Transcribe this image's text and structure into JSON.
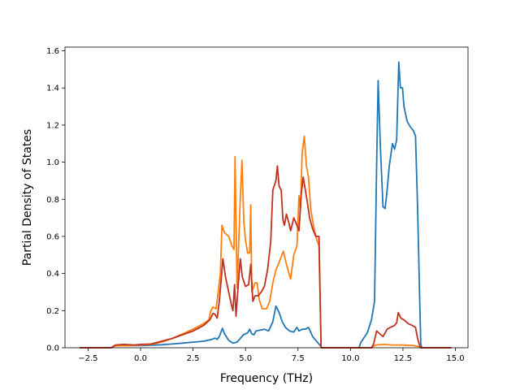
{
  "chart_data": {
    "type": "line",
    "title": "",
    "xlabel": "Frequency (THz)",
    "ylabel": "Partial Density of States",
    "xlim": [
      -3.6,
      15.6
    ],
    "ylim": [
      0,
      1.62
    ],
    "xticks": [
      -2.5,
      0.0,
      2.5,
      5.0,
      7.5,
      10.0,
      12.5,
      15.0
    ],
    "xtick_labels": [
      "−2.5",
      "0.0",
      "2.5",
      "5.0",
      "7.5",
      "10.0",
      "12.5",
      "15.0"
    ],
    "yticks": [
      0.0,
      0.2,
      0.4,
      0.6,
      0.8,
      1.0,
      1.2,
      1.4,
      1.6
    ],
    "ytick_labels": [
      "0.0",
      "0.2",
      "0.4",
      "0.6",
      "0.8",
      "1.0",
      "1.2",
      "1.4",
      "1.6"
    ],
    "grid": false,
    "legend": "none",
    "series": [
      {
        "color": "#1f77b4",
        "points": [
          [
            -2.9,
            0
          ],
          [
            -1.4,
            0
          ],
          [
            -1.2,
            0.012
          ],
          [
            -0.5,
            0.012
          ],
          [
            0.0,
            0.012
          ],
          [
            0.5,
            0.014
          ],
          [
            1.0,
            0.016
          ],
          [
            1.5,
            0.02
          ],
          [
            2.0,
            0.025
          ],
          [
            2.5,
            0.03
          ],
          [
            3.0,
            0.035
          ],
          [
            3.4,
            0.045
          ],
          [
            3.55,
            0.052
          ],
          [
            3.65,
            0.045
          ],
          [
            3.75,
            0.06
          ],
          [
            3.9,
            0.105
          ],
          [
            4.0,
            0.075
          ],
          [
            4.2,
            0.04
          ],
          [
            4.4,
            0.025
          ],
          [
            4.6,
            0.03
          ],
          [
            4.9,
            0.07
          ],
          [
            5.1,
            0.08
          ],
          [
            5.2,
            0.1
          ],
          [
            5.3,
            0.075
          ],
          [
            5.4,
            0.07
          ],
          [
            5.5,
            0.09
          ],
          [
            5.7,
            0.095
          ],
          [
            5.9,
            0.1
          ],
          [
            6.1,
            0.09
          ],
          [
            6.3,
            0.14
          ],
          [
            6.45,
            0.225
          ],
          [
            6.6,
            0.19
          ],
          [
            6.75,
            0.14
          ],
          [
            6.9,
            0.11
          ],
          [
            7.1,
            0.09
          ],
          [
            7.3,
            0.085
          ],
          [
            7.45,
            0.11
          ],
          [
            7.55,
            0.09
          ],
          [
            7.7,
            0.1
          ],
          [
            7.85,
            0.1
          ],
          [
            8.0,
            0.11
          ],
          [
            8.2,
            0.06
          ],
          [
            8.5,
            0.02
          ],
          [
            8.6,
            0.005
          ],
          [
            8.65,
            0
          ],
          [
            10.4,
            0
          ],
          [
            10.5,
            0.03
          ],
          [
            10.8,
            0.08
          ],
          [
            11.0,
            0.15
          ],
          [
            11.15,
            0.25
          ],
          [
            11.25,
            1.0
          ],
          [
            11.32,
            1.44
          ],
          [
            11.42,
            1.1
          ],
          [
            11.55,
            0.76
          ],
          [
            11.65,
            0.75
          ],
          [
            11.75,
            0.85
          ],
          [
            11.85,
            0.98
          ],
          [
            12.0,
            1.1
          ],
          [
            12.1,
            1.07
          ],
          [
            12.2,
            1.12
          ],
          [
            12.3,
            1.54
          ],
          [
            12.38,
            1.4
          ],
          [
            12.48,
            1.4
          ],
          [
            12.55,
            1.3
          ],
          [
            12.7,
            1.22
          ],
          [
            12.85,
            1.19
          ],
          [
            13.0,
            1.17
          ],
          [
            13.1,
            1.14
          ],
          [
            13.2,
            0.75
          ],
          [
            13.3,
            0.25
          ],
          [
            13.35,
            0.02
          ],
          [
            13.4,
            0
          ],
          [
            14.8,
            0
          ]
        ]
      },
      {
        "color": "#ff7f0e",
        "points": [
          [
            -2.9,
            0
          ],
          [
            -1.4,
            0
          ],
          [
            -1.2,
            0.01
          ],
          [
            -0.5,
            0.012
          ],
          [
            0.0,
            0.015
          ],
          [
            0.5,
            0.018
          ],
          [
            1.0,
            0.03
          ],
          [
            1.5,
            0.05
          ],
          [
            2.0,
            0.075
          ],
          [
            2.5,
            0.1
          ],
          [
            3.0,
            0.13
          ],
          [
            3.25,
            0.15
          ],
          [
            3.35,
            0.2
          ],
          [
            3.45,
            0.22
          ],
          [
            3.6,
            0.21
          ],
          [
            3.7,
            0.3
          ],
          [
            3.8,
            0.4
          ],
          [
            3.88,
            0.66
          ],
          [
            4.0,
            0.62
          ],
          [
            4.2,
            0.6
          ],
          [
            4.35,
            0.55
          ],
          [
            4.45,
            0.53
          ],
          [
            4.5,
            1.03
          ],
          [
            4.6,
            0.32
          ],
          [
            4.75,
            0.8
          ],
          [
            4.83,
            1.01
          ],
          [
            4.92,
            0.68
          ],
          [
            5.0,
            0.58
          ],
          [
            5.1,
            0.51
          ],
          [
            5.2,
            0.51
          ],
          [
            5.25,
            0.77
          ],
          [
            5.3,
            0.3
          ],
          [
            5.45,
            0.35
          ],
          [
            5.55,
            0.35
          ],
          [
            5.65,
            0.26
          ],
          [
            5.8,
            0.21
          ],
          [
            6.0,
            0.21
          ],
          [
            6.15,
            0.25
          ],
          [
            6.3,
            0.35
          ],
          [
            6.45,
            0.42
          ],
          [
            6.6,
            0.46
          ],
          [
            6.8,
            0.52
          ],
          [
            6.95,
            0.45
          ],
          [
            7.15,
            0.37
          ],
          [
            7.3,
            0.5
          ],
          [
            7.45,
            0.55
          ],
          [
            7.55,
            0.82
          ],
          [
            7.62,
            0.75
          ],
          [
            7.7,
            1.05
          ],
          [
            7.8,
            1.14
          ],
          [
            7.9,
            0.98
          ],
          [
            8.0,
            0.92
          ],
          [
            8.1,
            0.75
          ],
          [
            8.25,
            0.65
          ],
          [
            8.4,
            0.58
          ],
          [
            8.5,
            0.55
          ],
          [
            8.6,
            0
          ],
          [
            11.0,
            0
          ],
          [
            11.2,
            0.015
          ],
          [
            11.6,
            0.018
          ],
          [
            12.0,
            0.015
          ],
          [
            12.5,
            0.015
          ],
          [
            13.0,
            0.012
          ],
          [
            13.3,
            0.005
          ],
          [
            13.35,
            0
          ],
          [
            14.8,
            0
          ]
        ]
      },
      {
        "color": "#c0311f",
        "points": [
          [
            -2.9,
            0
          ],
          [
            -1.4,
            0
          ],
          [
            -1.2,
            0.015
          ],
          [
            -0.8,
            0.018
          ],
          [
            -0.3,
            0.015
          ],
          [
            0.0,
            0.018
          ],
          [
            0.5,
            0.02
          ],
          [
            1.0,
            0.035
          ],
          [
            1.5,
            0.05
          ],
          [
            2.0,
            0.07
          ],
          [
            2.5,
            0.09
          ],
          [
            3.0,
            0.12
          ],
          [
            3.3,
            0.15
          ],
          [
            3.45,
            0.185
          ],
          [
            3.55,
            0.18
          ],
          [
            3.65,
            0.16
          ],
          [
            3.75,
            0.25
          ],
          [
            3.85,
            0.38
          ],
          [
            3.92,
            0.48
          ],
          [
            4.05,
            0.38
          ],
          [
            4.2,
            0.3
          ],
          [
            4.35,
            0.22
          ],
          [
            4.4,
            0.2
          ],
          [
            4.48,
            0.34
          ],
          [
            4.55,
            0.17
          ],
          [
            4.65,
            0.33
          ],
          [
            4.75,
            0.48
          ],
          [
            4.85,
            0.38
          ],
          [
            5.0,
            0.33
          ],
          [
            5.15,
            0.34
          ],
          [
            5.25,
            0.45
          ],
          [
            5.35,
            0.25
          ],
          [
            5.45,
            0.28
          ],
          [
            5.6,
            0.28
          ],
          [
            5.75,
            0.3
          ],
          [
            5.9,
            0.33
          ],
          [
            6.05,
            0.42
          ],
          [
            6.2,
            0.57
          ],
          [
            6.3,
            0.85
          ],
          [
            6.45,
            0.9
          ],
          [
            6.52,
            0.98
          ],
          [
            6.6,
            0.87
          ],
          [
            6.7,
            0.85
          ],
          [
            6.78,
            0.69
          ],
          [
            6.85,
            0.66
          ],
          [
            6.95,
            0.72
          ],
          [
            7.05,
            0.68
          ],
          [
            7.15,
            0.63
          ],
          [
            7.3,
            0.7
          ],
          [
            7.45,
            0.66
          ],
          [
            7.55,
            0.63
          ],
          [
            7.65,
            0.82
          ],
          [
            7.75,
            0.92
          ],
          [
            7.85,
            0.85
          ],
          [
            7.95,
            0.78
          ],
          [
            8.05,
            0.7
          ],
          [
            8.2,
            0.64
          ],
          [
            8.35,
            0.6
          ],
          [
            8.5,
            0.6
          ],
          [
            8.6,
            0
          ],
          [
            11.0,
            0
          ],
          [
            11.1,
            0.02
          ],
          [
            11.25,
            0.09
          ],
          [
            11.45,
            0.07
          ],
          [
            11.55,
            0.06
          ],
          [
            11.75,
            0.1
          ],
          [
            11.9,
            0.11
          ],
          [
            12.1,
            0.12
          ],
          [
            12.2,
            0.135
          ],
          [
            12.28,
            0.19
          ],
          [
            12.4,
            0.16
          ],
          [
            12.55,
            0.15
          ],
          [
            12.75,
            0.13
          ],
          [
            12.95,
            0.12
          ],
          [
            13.1,
            0.11
          ],
          [
            13.2,
            0.05
          ],
          [
            13.3,
            0.01
          ],
          [
            13.35,
            0
          ],
          [
            14.8,
            0
          ]
        ]
      }
    ]
  }
}
